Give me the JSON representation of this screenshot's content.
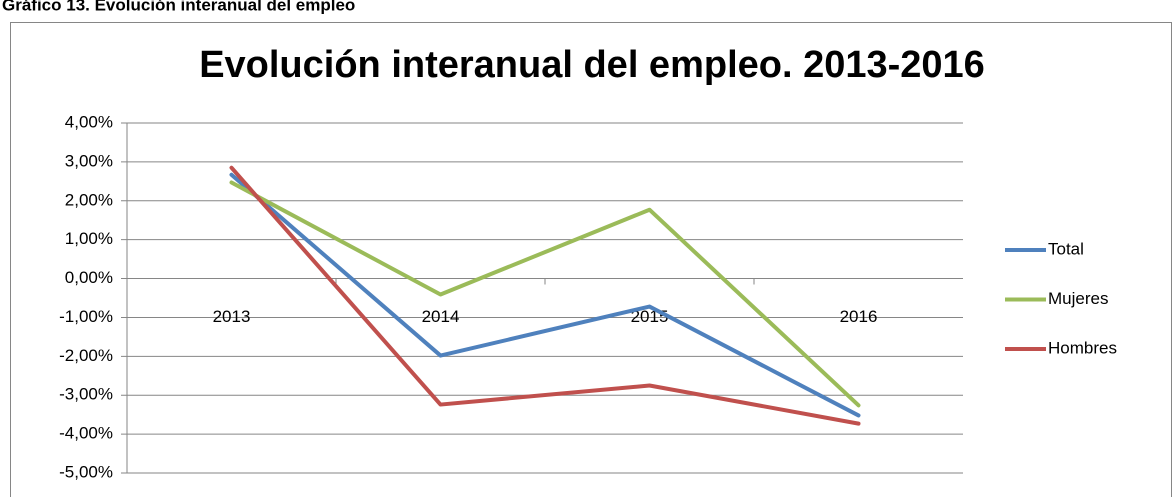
{
  "caption": "Gráfico 13. Evolución interanual del empleo",
  "chart_data": {
    "type": "line",
    "title": "Evolución interanual del empleo. 2013-2016",
    "categories": [
      "2013",
      "2014",
      "2015",
      "2016"
    ],
    "series": [
      {
        "name": "Total",
        "color": "#4f81bd",
        "values": [
          2.67,
          -1.98,
          -0.72,
          -3.52
        ]
      },
      {
        "name": "Mujeres",
        "color": "#9bbb59",
        "values": [
          2.47,
          -0.41,
          1.77,
          -3.26
        ]
      },
      {
        "name": "Hombres",
        "color": "#c0504d",
        "values": [
          2.85,
          -3.24,
          -2.75,
          -3.73
        ]
      }
    ],
    "ylim": [
      -5,
      4
    ],
    "yticks": [
      {
        "value": -5,
        "label": "-5,00%"
      },
      {
        "value": -4,
        "label": "-4,00%"
      },
      {
        "value": -3,
        "label": "-3,00%"
      },
      {
        "value": -2,
        "label": "-2,00%"
      },
      {
        "value": -1,
        "label": "-1,00%"
      },
      {
        "value": 0,
        "label": "0,00%"
      },
      {
        "value": 1,
        "label": "1,00%"
      },
      {
        "value": 2,
        "label": "2,00%"
      },
      {
        "value": 3,
        "label": "3,00%"
      },
      {
        "value": 4,
        "label": "4,00%"
      }
    ],
    "grid": true,
    "legend": "right"
  }
}
